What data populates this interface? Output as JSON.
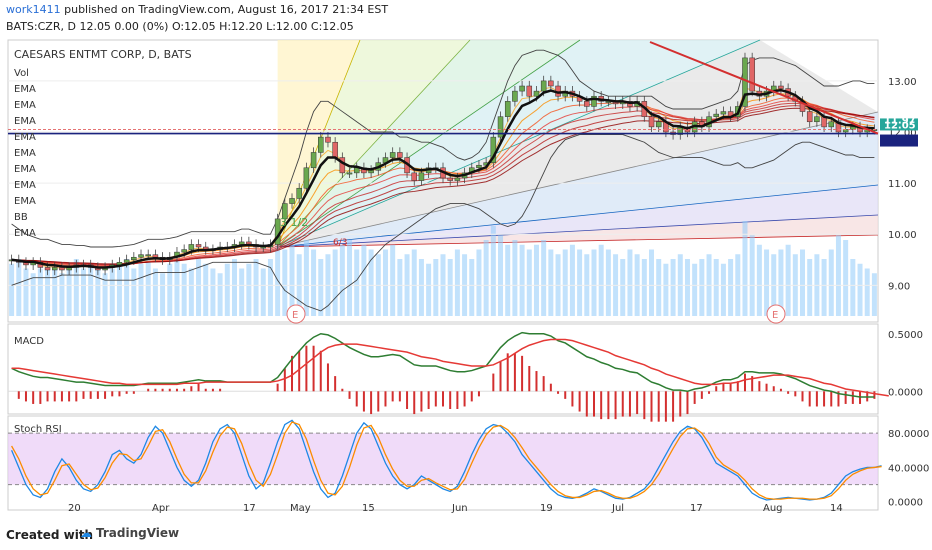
{
  "header": {
    "user": "work1411",
    "published": "published on TradingView.com, August 16, 2017 21:34 EST",
    "ohlc": "BATS:CZR, D  12.05 0.00 (0%)  O:12.05 H:12.20 L:12.00 C:12.05"
  },
  "footer": {
    "created_with": "Created with",
    "brand": "TradingView"
  },
  "legend": {
    "symbol": "CAESARS ENTMT CORP, D, BATS",
    "items": [
      "Vol",
      "EMA",
      "EMA",
      "EMA",
      "EMA",
      "EMA",
      "EMA",
      "EMA",
      "EMA",
      "BB",
      "EMA"
    ]
  },
  "annotations": {
    "fib_label": "3 1/2",
    "earnings_marker": "E",
    "fib_small": "6/3"
  },
  "colors": {
    "candle_up": "#6aa84f",
    "candle_down": "#e06666",
    "macd": "#2e7d32",
    "signal": "#e53935",
    "stoch_k": "#1e88e5",
    "stoch_d": "#fb8c00",
    "trend": "#d32f2f",
    "support": "#1a237e"
  },
  "chart_data": [
    {
      "type": "candlestick",
      "panel": "price",
      "x_ticks": [
        "20",
        "Apr",
        "17",
        "May",
        "15",
        "Jun",
        "19",
        "Jul",
        "17",
        "Aug",
        "14"
      ],
      "ylim": [
        8.4,
        13.8
      ],
      "y_ticks": [
        9.0,
        10.0,
        11.0,
        12.0,
        13.0
      ],
      "price_labels": [
        {
          "value": 12.05,
          "label": "12.05",
          "color": "#26a69a"
        },
        {
          "value": 11.97,
          "label": "11.97",
          "color": "#1a237e"
        }
      ],
      "close": [
        9.5,
        9.45,
        9.4,
        9.45,
        9.35,
        9.3,
        9.35,
        9.3,
        9.35,
        9.4,
        9.4,
        9.35,
        9.3,
        9.35,
        9.4,
        9.45,
        9.5,
        9.55,
        9.6,
        9.6,
        9.55,
        9.5,
        9.55,
        9.65,
        9.7,
        9.8,
        9.75,
        9.7,
        9.7,
        9.75,
        9.75,
        9.8,
        9.85,
        9.8,
        9.75,
        9.75,
        9.8,
        10.3,
        10.6,
        10.7,
        10.9,
        11.3,
        11.6,
        11.9,
        11.8,
        11.5,
        11.2,
        11.2,
        11.3,
        11.2,
        11.25,
        11.4,
        11.5,
        11.6,
        11.5,
        11.2,
        11.05,
        11.2,
        11.3,
        11.3,
        11.1,
        11.05,
        11.1,
        11.2,
        11.3,
        11.35,
        11.4,
        11.9,
        12.3,
        12.6,
        12.8,
        12.9,
        12.7,
        12.8,
        13.0,
        12.9,
        12.7,
        12.8,
        12.7,
        12.6,
        12.5,
        12.7,
        12.6,
        12.6,
        12.55,
        12.6,
        12.5,
        12.6,
        12.3,
        12.1,
        12.2,
        12.0,
        11.95,
        12.1,
        12.0,
        12.2,
        12.1,
        12.3,
        12.35,
        12.4,
        12.3,
        12.5,
        13.45,
        12.8,
        12.7,
        12.8,
        12.9,
        12.85,
        12.7,
        12.6,
        12.4,
        12.2,
        12.3,
        12.1,
        12.2,
        12.0,
        12.05,
        12.1,
        12.0,
        12.05,
        12.05
      ],
      "ema_fast": [
        9.5,
        9.48,
        9.46,
        9.46,
        9.43,
        9.4,
        9.39,
        9.37,
        9.36,
        9.37,
        9.38,
        9.37,
        9.35,
        9.35,
        9.36,
        9.38,
        9.41,
        9.45,
        9.49,
        9.52,
        9.53,
        9.52,
        9.53,
        9.56,
        9.6,
        9.66,
        9.69,
        9.69,
        9.7,
        9.72,
        9.73,
        9.75,
        9.78,
        9.79,
        9.78,
        9.77,
        9.78,
        9.95,
        10.17,
        10.35,
        10.54,
        10.8,
        11.07,
        11.35,
        11.5,
        11.5,
        11.4,
        11.33,
        11.32,
        11.28,
        11.27,
        11.31,
        11.38,
        11.46,
        11.47,
        11.38,
        11.27,
        11.25,
        11.27,
        11.28,
        11.22,
        11.16,
        11.14,
        11.16,
        11.21,
        11.26,
        11.31,
        11.51,
        11.78,
        12.06,
        12.31,
        12.51,
        12.57,
        12.65,
        12.77,
        12.81,
        12.77,
        12.78,
        12.75,
        12.7,
        12.63,
        12.65,
        12.63,
        12.62,
        12.6,
        12.6,
        12.57,
        12.58,
        12.48,
        12.35,
        12.3,
        12.2,
        12.12,
        12.11,
        12.07,
        12.12,
        12.11,
        12.17,
        12.23,
        12.29,
        12.29,
        12.36,
        12.73,
        12.75,
        12.73,
        12.75,
        12.8,
        12.82,
        12.78,
        12.72,
        12.61,
        12.47,
        12.41,
        12.3,
        12.27,
        12.18,
        12.14,
        12.13,
        12.09,
        12.08,
        12.07
      ],
      "bb_upper": [
        10.2,
        10.1,
        10.0,
        9.95,
        9.9,
        9.9,
        9.85,
        9.8,
        9.8,
        9.78,
        9.78,
        9.75,
        9.75,
        9.75,
        9.75,
        9.76,
        9.78,
        9.8,
        9.85,
        9.9,
        9.9,
        9.9,
        9.92,
        9.95,
        10.0,
        10.05,
        10.05,
        10.05,
        10.05,
        10.05,
        10.05,
        10.05,
        10.1,
        10.1,
        10.05,
        10.0,
        10.0,
        10.3,
        10.7,
        11.1,
        11.5,
        12.0,
        12.4,
        12.6,
        12.6,
        12.5,
        12.4,
        12.3,
        12.2,
        12.1,
        12.0,
        12.0,
        12.0,
        12.0,
        11.9,
        11.9,
        11.85,
        11.8,
        11.8,
        11.75,
        11.7,
        11.6,
        11.5,
        11.45,
        11.5,
        11.6,
        11.8,
        12.2,
        12.6,
        13.0,
        13.3,
        13.5,
        13.55,
        13.6,
        13.6,
        13.55,
        13.5,
        13.4,
        13.2,
        13.0,
        12.9,
        12.8,
        12.75,
        12.7,
        12.7,
        12.7,
        12.7,
        12.7,
        12.7,
        12.7,
        12.6,
        12.5,
        12.45,
        12.45,
        12.45,
        12.45,
        12.45,
        12.5,
        12.55,
        12.6,
        12.65,
        12.8,
        13.3,
        13.4,
        13.45,
        13.45,
        13.45,
        13.4,
        13.35,
        13.3,
        13.2,
        13.1,
        13.0,
        12.9,
        12.9,
        12.9,
        12.95,
        13.0,
        13.0,
        12.95,
        12.95
      ],
      "bb_lower": [
        9.0,
        9.05,
        9.1,
        9.15,
        9.15,
        9.15,
        9.15,
        9.2,
        9.2,
        9.2,
        9.2,
        9.2,
        9.15,
        9.1,
        9.1,
        9.1,
        9.1,
        9.1,
        9.15,
        9.2,
        9.25,
        9.25,
        9.25,
        9.25,
        9.25,
        9.3,
        9.35,
        9.4,
        9.45,
        9.45,
        9.45,
        9.45,
        9.45,
        9.45,
        9.45,
        9.4,
        9.35,
        9.1,
        8.9,
        8.8,
        8.7,
        8.6,
        8.55,
        8.5,
        8.6,
        8.75,
        8.9,
        9.0,
        9.1,
        9.3,
        9.5,
        9.65,
        9.8,
        9.9,
        10.0,
        10.1,
        10.2,
        10.3,
        10.4,
        10.5,
        10.55,
        10.6,
        10.6,
        10.6,
        10.55,
        10.5,
        10.4,
        10.3,
        10.2,
        10.15,
        10.2,
        10.35,
        10.6,
        10.9,
        11.2,
        11.5,
        11.7,
        11.85,
        11.9,
        11.95,
        11.95,
        11.95,
        11.95,
        11.95,
        11.95,
        11.95,
        11.9,
        11.85,
        11.8,
        11.7,
        11.6,
        11.55,
        11.5,
        11.5,
        11.5,
        11.5,
        11.5,
        11.45,
        11.4,
        11.35,
        11.35,
        11.4,
        11.3,
        11.3,
        11.35,
        11.4,
        11.45,
        11.55,
        11.65,
        11.75,
        11.8,
        11.8,
        11.75,
        11.7,
        11.65,
        11.6,
        11.55,
        11.55,
        11.5,
        11.5,
        11.5
      ],
      "volume": [
        0.55,
        0.6,
        0.5,
        0.45,
        0.5,
        0.55,
        0.5,
        0.45,
        0.55,
        0.6,
        0.5,
        0.55,
        0.5,
        0.45,
        0.5,
        0.55,
        0.6,
        0.5,
        0.55,
        0.6,
        0.5,
        0.45,
        0.55,
        0.6,
        0.55,
        0.5,
        0.6,
        0.55,
        0.5,
        0.45,
        0.55,
        0.6,
        0.5,
        0.55,
        0.6,
        0.5,
        0.6,
        0.9,
        0.7,
        0.75,
        0.65,
        0.8,
        0.7,
        0.6,
        0.65,
        0.7,
        0.75,
        0.8,
        0.7,
        0.75,
        0.7,
        0.65,
        0.7,
        0.75,
        0.6,
        0.65,
        0.7,
        0.6,
        0.55,
        0.6,
        0.65,
        0.6,
        0.7,
        0.65,
        0.6,
        0.7,
        0.8,
        0.95,
        0.85,
        0.75,
        0.8,
        0.75,
        0.7,
        0.75,
        0.8,
        0.7,
        0.65,
        0.7,
        0.75,
        0.7,
        0.65,
        0.7,
        0.75,
        0.7,
        0.65,
        0.6,
        0.7,
        0.65,
        0.6,
        0.7,
        0.6,
        0.55,
        0.6,
        0.65,
        0.6,
        0.55,
        0.6,
        0.65,
        0.6,
        0.55,
        0.6,
        0.65,
        1.0,
        0.85,
        0.75,
        0.7,
        0.65,
        0.7,
        0.75,
        0.65,
        0.7,
        0.6,
        0.65,
        0.6,
        0.7,
        0.85,
        0.8,
        0.6,
        0.55,
        0.5,
        0.45
      ]
    },
    {
      "type": "line",
      "panel": "macd",
      "title": "MACD",
      "ylim": [
        -0.18,
        0.55
      ],
      "y_ticks": [
        0.0,
        0.5
      ],
      "y_tick_labels": [
        "0.0000",
        "0.5000"
      ],
      "macd": [
        0.2,
        0.17,
        0.15,
        0.13,
        0.12,
        0.12,
        0.11,
        0.1,
        0.09,
        0.08,
        0.08,
        0.07,
        0.06,
        0.05,
        0.05,
        0.05,
        0.05,
        0.05,
        0.06,
        0.07,
        0.07,
        0.07,
        0.07,
        0.07,
        0.08,
        0.09,
        0.1,
        0.09,
        0.09,
        0.09,
        0.08,
        0.08,
        0.08,
        0.08,
        0.08,
        0.08,
        0.08,
        0.12,
        0.2,
        0.28,
        0.35,
        0.42,
        0.47,
        0.5,
        0.49,
        0.46,
        0.42,
        0.38,
        0.35,
        0.32,
        0.3,
        0.3,
        0.31,
        0.32,
        0.31,
        0.27,
        0.23,
        0.22,
        0.22,
        0.22,
        0.2,
        0.18,
        0.17,
        0.17,
        0.18,
        0.2,
        0.22,
        0.3,
        0.38,
        0.44,
        0.48,
        0.51,
        0.5,
        0.5,
        0.5,
        0.48,
        0.44,
        0.42,
        0.38,
        0.34,
        0.3,
        0.28,
        0.25,
        0.23,
        0.2,
        0.19,
        0.17,
        0.16,
        0.12,
        0.08,
        0.06,
        0.03,
        0.01,
        0.01,
        0.0,
        0.02,
        0.03,
        0.05,
        0.08,
        0.1,
        0.1,
        0.12,
        0.17,
        0.17,
        0.16,
        0.16,
        0.16,
        0.15,
        0.13,
        0.11,
        0.08,
        0.05,
        0.03,
        0.01,
        0.0,
        -0.02,
        -0.03,
        -0.04,
        -0.05,
        -0.05,
        -0.05
      ],
      "signal": [
        0.2,
        0.2,
        0.19,
        0.18,
        0.17,
        0.16,
        0.15,
        0.14,
        0.13,
        0.12,
        0.11,
        0.1,
        0.09,
        0.08,
        0.07,
        0.07,
        0.06,
        0.06,
        0.06,
        0.06,
        0.06,
        0.06,
        0.06,
        0.06,
        0.07,
        0.07,
        0.07,
        0.08,
        0.08,
        0.08,
        0.08,
        0.08,
        0.08,
        0.08,
        0.08,
        0.08,
        0.08,
        0.09,
        0.11,
        0.14,
        0.19,
        0.24,
        0.29,
        0.34,
        0.38,
        0.4,
        0.41,
        0.41,
        0.41,
        0.4,
        0.39,
        0.38,
        0.37,
        0.36,
        0.35,
        0.34,
        0.32,
        0.3,
        0.29,
        0.28,
        0.26,
        0.25,
        0.24,
        0.23,
        0.22,
        0.22,
        0.22,
        0.23,
        0.26,
        0.29,
        0.33,
        0.37,
        0.4,
        0.42,
        0.44,
        0.45,
        0.45,
        0.45,
        0.44,
        0.42,
        0.4,
        0.38,
        0.36,
        0.34,
        0.31,
        0.29,
        0.27,
        0.25,
        0.23,
        0.2,
        0.18,
        0.15,
        0.13,
        0.11,
        0.09,
        0.07,
        0.06,
        0.06,
        0.06,
        0.07,
        0.07,
        0.08,
        0.1,
        0.11,
        0.12,
        0.13,
        0.14,
        0.14,
        0.14,
        0.13,
        0.12,
        0.11,
        0.09,
        0.07,
        0.06,
        0.04,
        0.02,
        0.01,
        0.0,
        -0.01,
        -0.02,
        -0.03,
        -0.04
      ]
    },
    {
      "type": "line",
      "panel": "stoch_rsi",
      "title": "Stoch RSI",
      "ylim": [
        -5,
        100
      ],
      "y_ticks": [
        0,
        40,
        80
      ],
      "y_tick_labels": [
        "0.0000",
        "40.0000",
        "80.0000"
      ],
      "band": [
        20,
        80
      ],
      "k": [
        60,
        40,
        20,
        8,
        5,
        15,
        35,
        50,
        40,
        25,
        15,
        12,
        20,
        35,
        55,
        60,
        50,
        45,
        55,
        75,
        88,
        80,
        60,
        40,
        25,
        18,
        25,
        45,
        70,
        85,
        90,
        80,
        55,
        30,
        15,
        22,
        45,
        70,
        90,
        95,
        85,
        60,
        35,
        15,
        5,
        10,
        30,
        55,
        80,
        92,
        85,
        65,
        45,
        30,
        20,
        15,
        20,
        30,
        25,
        20,
        15,
        12,
        18,
        35,
        55,
        72,
        85,
        90,
        88,
        80,
        70,
        55,
        45,
        35,
        25,
        15,
        8,
        5,
        4,
        6,
        10,
        15,
        12,
        8,
        4,
        3,
        5,
        10,
        15,
        25,
        40,
        55,
        70,
        82,
        88,
        85,
        75,
        60,
        45,
        40,
        35,
        30,
        20,
        10,
        5,
        2,
        3,
        4,
        5,
        4,
        3,
        2,
        3,
        5,
        10,
        20,
        30,
        35,
        38,
        40,
        40,
        42
      ],
      "d": [
        65,
        50,
        30,
        15,
        8,
        10,
        25,
        42,
        44,
        32,
        20,
        14,
        16,
        28,
        45,
        56,
        55,
        48,
        50,
        65,
        82,
        84,
        70,
        50,
        32,
        22,
        22,
        36,
        58,
        77,
        87,
        85,
        68,
        44,
        25,
        18,
        32,
        55,
        80,
        93,
        90,
        73,
        48,
        25,
        10,
        8,
        18,
        40,
        66,
        86,
        89,
        75,
        55,
        38,
        25,
        18,
        18,
        25,
        27,
        22,
        18,
        14,
        15,
        26,
        45,
        63,
        78,
        87,
        89,
        84,
        75,
        63,
        50,
        40,
        30,
        20,
        12,
        7,
        5,
        5,
        8,
        12,
        13,
        10,
        6,
        4,
        4,
        7,
        12,
        20,
        32,
        47,
        62,
        76,
        85,
        86,
        80,
        68,
        52,
        43,
        38,
        33,
        25,
        15,
        8,
        4,
        3,
        3,
        4,
        4,
        4,
        3,
        3,
        4,
        7,
        15,
        25,
        32,
        36,
        39,
        40,
        41
      ]
    }
  ]
}
